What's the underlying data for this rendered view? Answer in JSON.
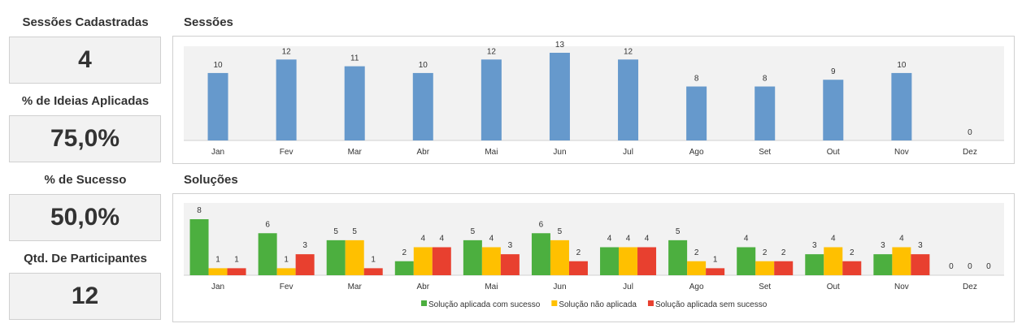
{
  "kpis": {
    "sessoes_label": "Sessões Cadastradas",
    "sessoes_value": "4",
    "ideias_label": "% de Ideias Aplicadas",
    "ideias_value": "75,0%",
    "sucesso_label": "% de Sucesso",
    "sucesso_value": "50,0%",
    "participantes_label": "Qtd. De Participantes",
    "participantes_value": "12"
  },
  "chart_data": [
    {
      "type": "bar",
      "title": "Sessões",
      "categories": [
        "Jan",
        "Fev",
        "Mar",
        "Abr",
        "Mai",
        "Jun",
        "Jul",
        "Ago",
        "Set",
        "Out",
        "Nov",
        "Dez"
      ],
      "values": [
        10,
        12,
        11,
        10,
        12,
        13,
        12,
        8,
        8,
        9,
        10,
        0
      ],
      "ylim": [
        0,
        13
      ],
      "grid": false,
      "color": "#6699cc"
    },
    {
      "type": "bar",
      "title": "Soluções",
      "categories": [
        "Jan",
        "Fev",
        "Mar",
        "Abr",
        "Mai",
        "Jun",
        "Jul",
        "Ago",
        "Set",
        "Out",
        "Nov",
        "Dez"
      ],
      "series": [
        {
          "name": "Solução aplicada com sucesso",
          "values": [
            8,
            6,
            5,
            2,
            5,
            6,
            4,
            5,
            4,
            3,
            3,
            0
          ],
          "color": "#4caf3f"
        },
        {
          "name": "Solução não aplicada",
          "values": [
            1,
            1,
            5,
            4,
            4,
            5,
            4,
            2,
            2,
            4,
            4,
            0
          ],
          "color": "#ffc000"
        },
        {
          "name": "Solução aplicada sem sucesso",
          "values": [
            1,
            3,
            1,
            4,
            3,
            2,
            4,
            1,
            2,
            2,
            3,
            0
          ],
          "color": "#e8402f"
        }
      ],
      "ylim": [
        0,
        8
      ],
      "grid": false,
      "legend": "bottom"
    }
  ]
}
